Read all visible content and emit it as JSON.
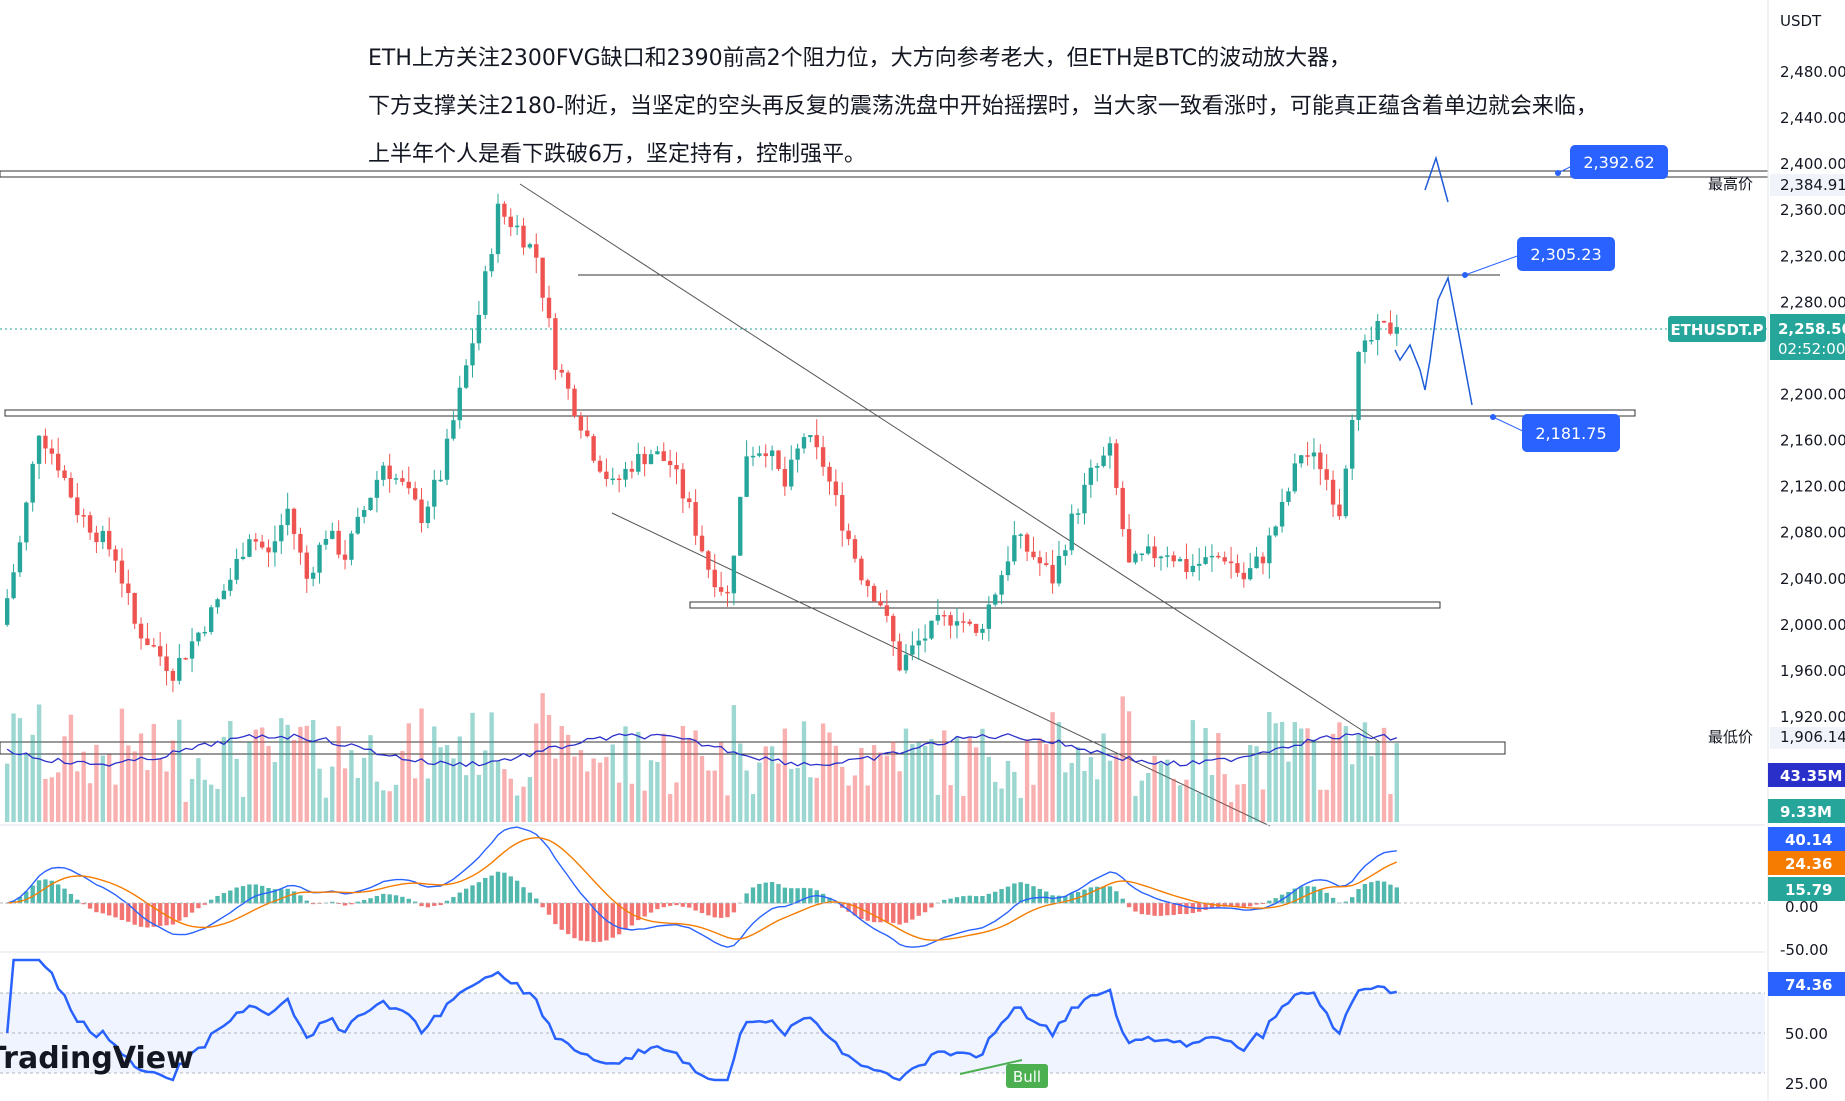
{
  "chart_data": {
    "type": "candlestick",
    "symbol": "ETHUSDT.P",
    "currency": "USDT",
    "countdown": "02:52:00",
    "last_price": 2258.5,
    "last_price_label": "2,258.50",
    "yaxis_ticks": [
      2480,
      2440,
      2400,
      2360,
      2320,
      2280,
      2200,
      2160,
      2120,
      2080,
      2040,
      2000,
      1960,
      1920
    ],
    "yaxis_tick_labels": [
      "2,480.00",
      "2,440.00",
      "2,400.00",
      "2,360.00",
      "2,320.00",
      "2,280.00",
      "2,200.00",
      "2,160.00",
      "2,120.00",
      "2,080.00",
      "2,040.00",
      "2,000.00",
      "1,960.00",
      "1,920.00"
    ],
    "high_marker": {
      "label": "最高价",
      "value": 2384.91,
      "text": "2,384.91"
    },
    "low_marker": {
      "label": "最低价",
      "value": 1906.14,
      "text": "1,906.14"
    },
    "price_callouts": [
      {
        "value": 2392.62,
        "text": "2,392.62"
      },
      {
        "value": 2305.23,
        "text": "2,305.23"
      },
      {
        "value": 2181.75,
        "text": "2,181.75"
      }
    ],
    "annotations": [
      "ETH上方关注2300FVG缺口和2390前高2个阻力位，大方向参考老大，但ETH是BTC的波动放大器，",
      "下方支撑关注2180-附近，当坚定的空头再反复的震荡洗盘中开始摇摆时，当大家一致看涨时，可能真正蕴含着单边就会来临，",
      "上半年个人是看下跌破6万，坚定持有，控制强平。"
    ],
    "close_path": [
      2000,
      2070,
      2170,
      2140,
      2100,
      2080,
      2060,
      2000,
      1980,
      1960,
      1985,
      2010,
      2040,
      2080,
      2060,
      2100,
      2040,
      2080,
      2060,
      2100,
      2140,
      2120,
      2095,
      2130,
      2200,
      2270,
      2360,
      2345,
      2320,
      2230,
      2190,
      2150,
      2120,
      2140,
      2150,
      2140,
      2100,
      2050,
      2025,
      2150,
      2155,
      2120,
      2165,
      2140,
      2090,
      2045,
      2020,
      1965,
      1985,
      2000,
      2010,
      1990,
      2030,
      2075,
      2060,
      2040,
      2090,
      2130,
      2150,
      2050,
      2060,
      2065,
      2050,
      2055,
      2060,
      2040,
      2060,
      2100,
      2150,
      2140,
      2100,
      2230,
      2255,
      2258.5
    ],
    "volume": {
      "ma_label": "43.35M",
      "last_label": "9.33M",
      "ma_color": "#2a2fc9"
    },
    "macd": {
      "macd_label": "40.14",
      "signal_label": "24.36",
      "hist_label": "15.79",
      "zero_label": "0.00",
      "neg_label": "-50.00"
    },
    "rsi": {
      "value_label": "74.36",
      "mid_label": "50.00",
      "low_label": "25.00",
      "signal_tag": "Bull"
    },
    "watermark": "TradingView"
  },
  "colors": {
    "up": "#26a69a",
    "down": "#ef5350",
    "blue": "#2962ff",
    "macd": "#2962ff",
    "signal": "#f57c00"
  }
}
